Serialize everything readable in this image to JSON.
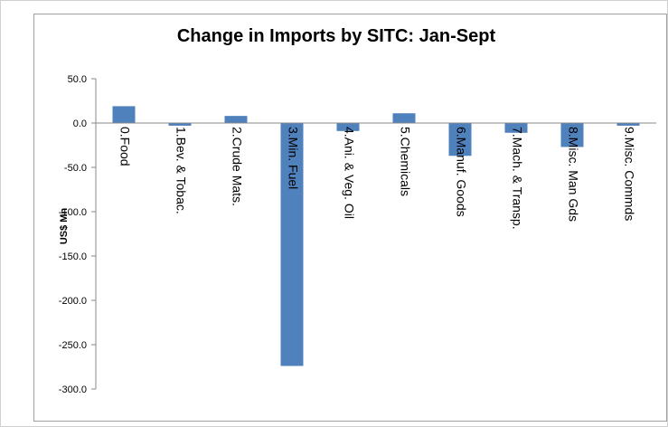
{
  "chart_data": {
    "type": "bar",
    "title": "Change in Imports by SITC: Jan-Sept",
    "y_label": "US$ Mn",
    "categories": [
      "0.Food",
      "1.Bev. & Tobac.",
      "2.Crude Mats.",
      "3.Min. Fuel",
      "4.Ani. & Veg. Oil",
      "5.Chemicals",
      "6.Manuf. Goods",
      "7.Mach. & Transp.",
      "8.Misc. Man Gds",
      "9.Misc. Commds"
    ],
    "values": [
      19,
      -3,
      8,
      -274,
      -9,
      11,
      -37,
      -11,
      -27,
      -3
    ],
    "color": "#4f81bd",
    "ylim": [
      -300,
      50
    ],
    "yticks": [
      {
        "value": -300,
        "label": "-300.0"
      },
      {
        "value": -250,
        "label": "-250.0"
      },
      {
        "value": -200,
        "label": "-200.0"
      },
      {
        "value": -150,
        "label": "-150.0"
      },
      {
        "value": -100,
        "label": "-100.0"
      },
      {
        "value": -50,
        "label": "-50.0"
      },
      {
        "value": 0,
        "label": "0.0"
      },
      {
        "value": 50,
        "label": "50.0"
      }
    ]
  }
}
